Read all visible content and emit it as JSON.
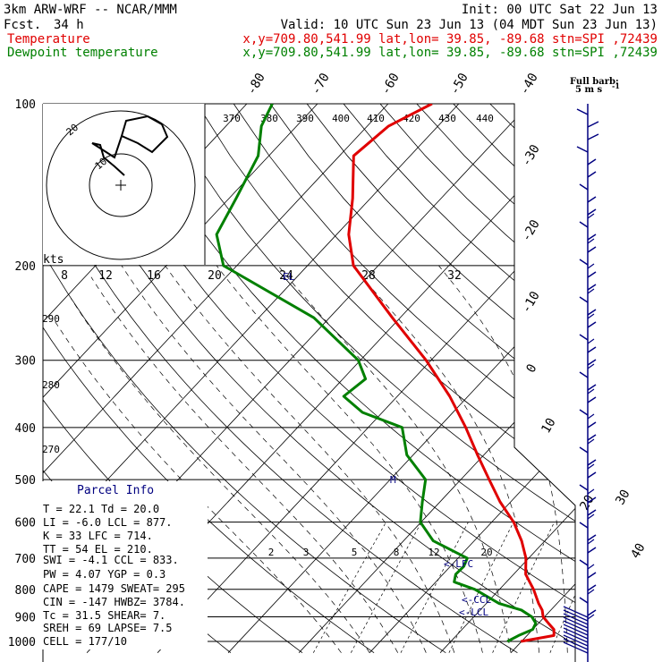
{
  "header": {
    "model": "3km ARW-WRF -- NCAR/MMM",
    "init": "Init: 00 UTC Sat 22 Jun 13",
    "fcst_label": "Fcst.",
    "fcst_value": "34 h",
    "valid": "Valid: 10 UTC Sun 23 Jun 13 (04 MDT Sun 23 Jun 13)",
    "temp_label": "Temperature",
    "dew_label": "Dewpoint temperature",
    "temp_loc": "x,y=709.80,541.99   lat,lon= 39.85, -89.68   stn=SPI ,72439",
    "dew_loc": "x,y=709.80,541.99   lat,lon= 39.85, -89.68   stn=SPI ,72439"
  },
  "colors": {
    "temperature": "#e00000",
    "dewpoint": "#008000",
    "wind_barb": "#000080",
    "label_accent": "#000080"
  },
  "barb_header": {
    "line1": "Full barb:",
    "line2": "5 m s",
    "exp": "-1"
  },
  "pressure_labels": [
    "100",
    "200",
    "300",
    "400",
    "500",
    "600",
    "700",
    "800",
    "900",
    "1000"
  ],
  "isotherm_labels": [
    "-80",
    "-70",
    "-60",
    "-50",
    "-40",
    "-30",
    "-20",
    "-10",
    "0",
    "10",
    "20",
    "30",
    "40"
  ],
  "theta_labels_top": [
    "370",
    "380",
    "390",
    "400",
    "410",
    "420",
    "430",
    "440"
  ],
  "theta_labels_left": [
    "290",
    "280",
    "270"
  ],
  "mixing_ratio_labels": [
    "2",
    "3",
    "5",
    "8",
    "12",
    "20"
  ],
  "hodograph": {
    "unit": "kts",
    "speed_labels": [
      "8",
      "12",
      "16",
      "20",
      "24",
      "28",
      "32"
    ],
    "ring_labels": [
      "10",
      "20"
    ]
  },
  "levels": {
    "el": "EL",
    "lfc": "<-LFC",
    "ccl": "<-CCL",
    "lcl": "<-LCL"
  },
  "parcel_info": {
    "title": "Parcel Info",
    "rows": [
      "T  =   22.1  Td =  20.0",
      "LI =   -6.0  LCL =  877.",
      "K  =     33  LFC =  714.",
      "TT =     54  EL  =  210.",
      "SWI =  -4.1  CCL =  833.",
      "PW =   4.07  YGP =   0.3",
      "CAPE =  1479  SWEAT=  295",
      "CIN =   -147  HWBZ= 3784.",
      "Tc =   31.5  SHEAR=   7.",
      "SREH =   69  LAPSE=  7.5",
      "CELL = 177/10"
    ]
  },
  "chart_data": {
    "type": "line",
    "diagram": "skew-T log-p",
    "x_unit": "degC",
    "y_unit": "hPa",
    "ylim": [
      1000,
      100
    ],
    "series": [
      {
        "name": "Temperature",
        "color": "#e00000",
        "points": [
          [
            1000,
            19.9
          ],
          [
            975,
            23.8
          ],
          [
            950,
            23.0
          ],
          [
            925,
            21.4
          ],
          [
            900,
            19.8
          ],
          [
            875,
            18.8
          ],
          [
            850,
            17.4
          ],
          [
            800,
            14.8
          ],
          [
            750,
            11.7
          ],
          [
            700,
            9.6
          ],
          [
            650,
            6.7
          ],
          [
            600,
            3.1
          ],
          [
            550,
            -1.5
          ],
          [
            500,
            -6.0
          ],
          [
            450,
            -10.9
          ],
          [
            400,
            -16.2
          ],
          [
            350,
            -22.6
          ],
          [
            300,
            -30.7
          ],
          [
            250,
            -41.1
          ],
          [
            200,
            -53.5
          ],
          [
            175,
            -58.3
          ],
          [
            150,
            -62.5
          ],
          [
            125,
            -68.0
          ],
          [
            110,
            -67.0
          ],
          [
            100,
            -63.8
          ]
        ]
      },
      {
        "name": "Dewpoint temperature",
        "color": "#008000",
        "points": [
          [
            1000,
            18.0
          ],
          [
            975,
            18.8
          ],
          [
            950,
            20.0
          ],
          [
            925,
            19.6
          ],
          [
            900,
            18.2
          ],
          [
            875,
            15.9
          ],
          [
            850,
            11.8
          ],
          [
            800,
            6.5
          ],
          [
            775,
            2.6
          ],
          [
            750,
            1.8
          ],
          [
            725,
            1.9
          ],
          [
            700,
            1.3
          ],
          [
            650,
            -5.8
          ],
          [
            600,
            -10.1
          ],
          [
            550,
            -12.5
          ],
          [
            500,
            -15.0
          ],
          [
            450,
            -20.9
          ],
          [
            400,
            -25.2
          ],
          [
            375,
            -32.8
          ],
          [
            350,
            -37.6
          ],
          [
            325,
            -36.8
          ],
          [
            300,
            -40.3
          ],
          [
            250,
            -52.2
          ],
          [
            200,
            -71.9
          ],
          [
            175,
            -77.0
          ],
          [
            150,
            -79.0
          ],
          [
            125,
            -81.5
          ],
          [
            110,
            -85.0
          ],
          [
            100,
            -86.4
          ]
        ]
      }
    ],
    "grid": true
  }
}
